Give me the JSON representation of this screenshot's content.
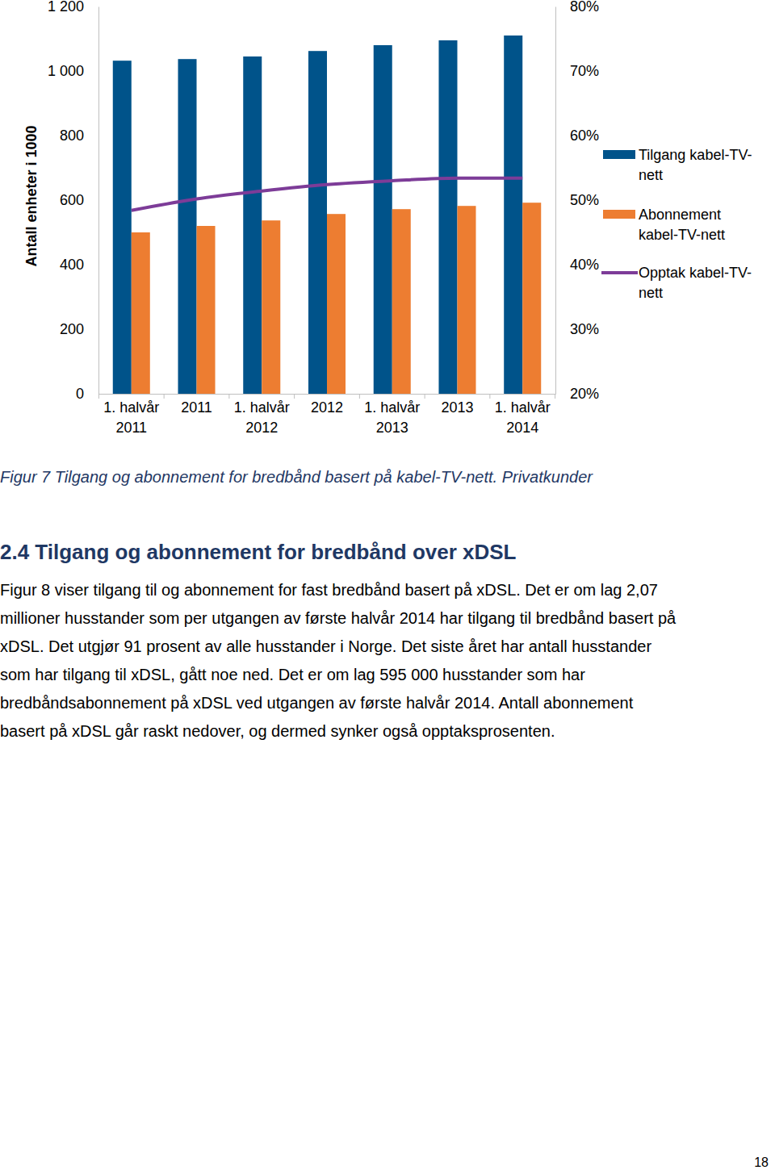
{
  "chart_data": {
    "type": "bar",
    "categories": [
      "1. halvår 2011",
      "2011",
      "1. halvår 2012",
      "2012",
      "1. halvår 2013",
      "2013",
      "1. halvår 2014"
    ],
    "y_label": "Antall enheter i 1000",
    "ylim": [
      0,
      1200
    ],
    "yticks": [
      0,
      200,
      400,
      600,
      800,
      {
        "value": 1000,
        "label": "1 000"
      },
      {
        "value": 1200,
        "label": "1 200"
      }
    ],
    "y2lim": [
      20,
      80
    ],
    "y2ticks": [
      {
        "value": 20,
        "label": "20%"
      },
      {
        "value": 30,
        "label": "30%"
      },
      {
        "value": 40,
        "label": "40%"
      },
      {
        "value": 50,
        "label": "50%"
      },
      {
        "value": 60,
        "label": "60%"
      },
      {
        "value": 70,
        "label": "70%"
      },
      {
        "value": 80,
        "label": "80%"
      }
    ],
    "grid": false,
    "legend": "right",
    "series": [
      {
        "name": "Tilgang kabel-TV-nett",
        "type": "bar",
        "color": "#00538a",
        "values": [
          1032,
          1037,
          1045,
          1062,
          1080,
          1095,
          1110
        ]
      },
      {
        "name": "Abonnement kabel-TV-nett",
        "type": "bar",
        "color": "#ed7d31",
        "values": [
          500,
          520,
          537,
          557,
          572,
          582,
          592
        ]
      },
      {
        "name": "Opptak kabel-TV-nett",
        "type": "line",
        "axis": "y2",
        "color": "#7d3c98",
        "line_style": "solid",
        "values": [
          48.4,
          50.2,
          51.4,
          52.4,
          53.0,
          53.4,
          53.4
        ]
      }
    ]
  },
  "caption": "Figur 7 Tilgang og abonnement for bredbånd basert på kabel-TV-nett. Privatkunder",
  "section_heading": "2.4 Tilgang og abonnement for bredbånd over xDSL",
  "paragraph_lines": [
    "Figur 8 viser tilgang til og abonnement for fast bredbånd basert på xDSL. Det er om lag 2,07",
    "millioner husstander som per utgangen av første halvår 2014 har tilgang til bredbånd basert på",
    "xDSL. Det utgjør 91 prosent av alle husstander i Norge. Det siste året har antall husstander",
    "som har tilgang til xDSL, gått noe ned. Det er om lag 595 000 husstander som har",
    "bredbåndsabonnement på xDSL ved utgangen av første halvår 2014. Antall abonnement",
    "basert på xDSL går raskt nedover, og dermed synker også opptaksprosenten."
  ],
  "page_number": "18"
}
